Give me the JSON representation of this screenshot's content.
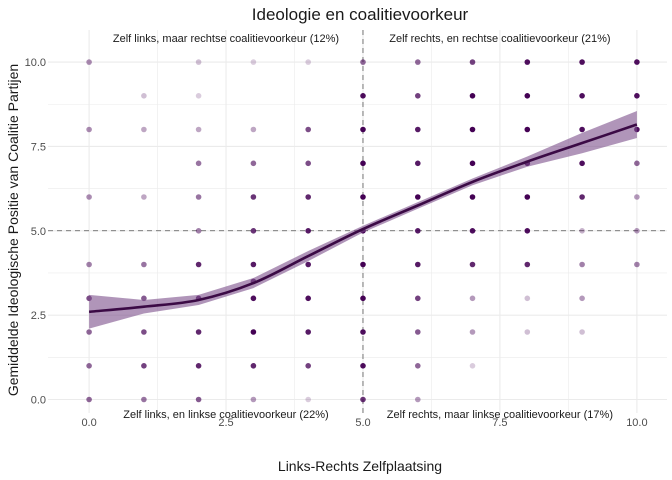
{
  "chart_data": {
    "type": "scatter",
    "title": "Ideologie en coalitievoorkeur",
    "xlabel": "Links-Rechts Zelfplaatsing",
    "ylabel": "Gemiddelde Ideologische Positie van Coalitie Partijen",
    "xlim": [
      -0.75,
      10.55
    ],
    "ylim": [
      -0.4,
      10.95
    ],
    "xticks": [
      0,
      2.5,
      5,
      7.5,
      10
    ],
    "xtick_labels": [
      "0.0",
      "2.5",
      "5.0",
      "7.5",
      "10.0"
    ],
    "yticks": [
      0,
      2.5,
      5,
      7.5,
      10
    ],
    "ytick_labels": [
      "0.0",
      "2.5",
      "5.0",
      "7.5",
      "10.0"
    ],
    "grid": true,
    "legend": "none",
    "reference_lines": {
      "x": 5,
      "y": 5,
      "style": "dashed"
    },
    "colors": {
      "point": "#440154",
      "trend_line": "#3b0a45",
      "ribbon": "#7b4f8a",
      "reference": "#555555"
    },
    "annotations": [
      {
        "text": "Zelf links, maar rechtse coalitievoorkeur (12%)",
        "x": 2.5,
        "y": 10.6
      },
      {
        "text": "Zelf rechts, en rechtse coalitievoorkeur (21%)",
        "x": 7.5,
        "y": 10.6
      },
      {
        "text": "Zelf links, en linkse coalitievoorkeur (22%)",
        "x": 2.5,
        "y": -0.55
      },
      {
        "text": "Zelf rechts, maar linkse coalitievoorkeur (17%)",
        "x": 7.5,
        "y": -0.55
      }
    ],
    "points": [
      [
        0,
        10,
        0.45
      ],
      [
        0,
        8,
        0.45
      ],
      [
        0,
        6,
        0.45
      ],
      [
        0,
        4,
        0.5
      ],
      [
        0,
        3,
        0.7
      ],
      [
        0,
        2,
        0.6
      ],
      [
        0,
        1,
        0.6
      ],
      [
        0,
        0,
        0.6
      ],
      [
        1,
        9,
        0.25
      ],
      [
        1,
        8,
        0.35
      ],
      [
        1,
        6,
        0.35
      ],
      [
        1,
        4,
        0.55
      ],
      [
        1,
        3,
        0.65
      ],
      [
        1,
        2,
        0.7
      ],
      [
        1,
        1,
        0.75
      ],
      [
        1,
        0,
        0.55
      ],
      [
        2,
        10,
        0.25
      ],
      [
        2,
        9,
        0.2
      ],
      [
        2,
        8,
        0.35
      ],
      [
        2,
        7,
        0.55
      ],
      [
        2,
        6,
        0.55
      ],
      [
        2,
        5,
        0.5
      ],
      [
        2,
        4,
        0.85
      ],
      [
        2,
        3,
        0.85
      ],
      [
        2,
        2,
        0.85
      ],
      [
        2,
        1,
        0.85
      ],
      [
        2,
        0,
        0.65
      ],
      [
        3,
        10,
        0.2
      ],
      [
        3,
        8,
        0.35
      ],
      [
        3,
        7,
        0.6
      ],
      [
        3,
        6,
        0.8
      ],
      [
        3,
        5,
        0.8
      ],
      [
        3,
        4,
        0.9
      ],
      [
        3,
        3.5,
        0.85
      ],
      [
        3,
        3,
        0.95
      ],
      [
        3,
        2,
        1
      ],
      [
        3,
        1,
        0.85
      ],
      [
        3,
        0,
        0.4
      ],
      [
        4,
        10,
        0.2
      ],
      [
        4,
        8,
        0.7
      ],
      [
        4,
        7,
        0.7
      ],
      [
        4,
        6,
        0.85
      ],
      [
        4,
        5,
        0.9
      ],
      [
        4,
        4,
        0.9
      ],
      [
        4,
        3,
        0.95
      ],
      [
        4,
        2,
        0.9
      ],
      [
        4,
        1,
        0.75
      ],
      [
        4,
        0,
        0.2
      ],
      [
        5,
        10,
        0.6
      ],
      [
        5,
        9,
        0.95
      ],
      [
        5,
        8,
        1
      ],
      [
        5,
        7,
        1
      ],
      [
        5,
        6,
        1
      ],
      [
        5,
        5,
        1
      ],
      [
        5,
        4,
        1
      ],
      [
        5,
        3,
        1
      ],
      [
        5,
        2,
        0.95
      ],
      [
        5,
        1,
        0.95
      ],
      [
        5,
        0,
        0.8
      ],
      [
        6,
        10,
        0.6
      ],
      [
        6,
        9,
        0.75
      ],
      [
        6,
        8,
        0.9
      ],
      [
        6,
        7,
        0.9
      ],
      [
        6,
        6,
        1
      ],
      [
        6,
        5,
        0.9
      ],
      [
        6,
        4,
        0.9
      ],
      [
        6,
        3,
        0.75
      ],
      [
        6,
        2,
        0.65
      ],
      [
        6,
        1,
        0.6
      ],
      [
        6,
        0,
        0.4
      ],
      [
        7,
        10,
        0.75
      ],
      [
        7,
        9,
        1
      ],
      [
        7,
        8,
        1
      ],
      [
        7,
        7,
        1
      ],
      [
        7,
        6,
        1
      ],
      [
        7,
        5,
        0.95
      ],
      [
        7,
        4,
        0.85
      ],
      [
        7,
        3,
        0.4
      ],
      [
        7,
        2,
        0.4
      ],
      [
        7,
        1,
        0.2
      ],
      [
        8,
        10,
        0.95
      ],
      [
        8,
        9,
        1
      ],
      [
        8,
        8,
        1
      ],
      [
        8,
        7,
        1
      ],
      [
        8,
        6,
        1
      ],
      [
        8,
        5,
        0.95
      ],
      [
        8,
        4,
        0.85
      ],
      [
        8,
        3,
        0.25
      ],
      [
        8,
        2,
        0.25
      ],
      [
        9,
        10,
        0.95
      ],
      [
        9,
        9,
        0.95
      ],
      [
        9,
        8,
        0.95
      ],
      [
        9,
        7,
        0.95
      ],
      [
        9,
        6,
        0.85
      ],
      [
        9,
        5,
        0.3
      ],
      [
        9,
        4,
        0.5
      ],
      [
        9,
        3,
        0.4
      ],
      [
        9,
        2,
        0.25
      ],
      [
        10,
        10,
        0.95
      ],
      [
        10,
        9,
        0.95
      ],
      [
        10,
        8,
        0.95
      ],
      [
        10,
        7,
        0.6
      ],
      [
        10,
        6,
        0.4
      ],
      [
        10,
        5,
        0.4
      ],
      [
        10,
        4,
        0.5
      ]
    ],
    "trend": {
      "x": [
        0,
        1,
        2,
        3,
        4,
        5,
        6,
        7,
        8,
        9,
        10
      ],
      "y": [
        2.6,
        2.75,
        2.95,
        3.45,
        4.25,
        5.05,
        5.75,
        6.45,
        7.05,
        7.6,
        8.15
      ],
      "lo": [
        2.1,
        2.55,
        2.8,
        3.3,
        4.1,
        4.95,
        5.65,
        6.35,
        6.9,
        7.3,
        7.75
      ],
      "hi": [
        3.1,
        2.95,
        3.1,
        3.6,
        4.4,
        5.15,
        5.85,
        6.55,
        7.2,
        7.9,
        8.55
      ]
    }
  }
}
